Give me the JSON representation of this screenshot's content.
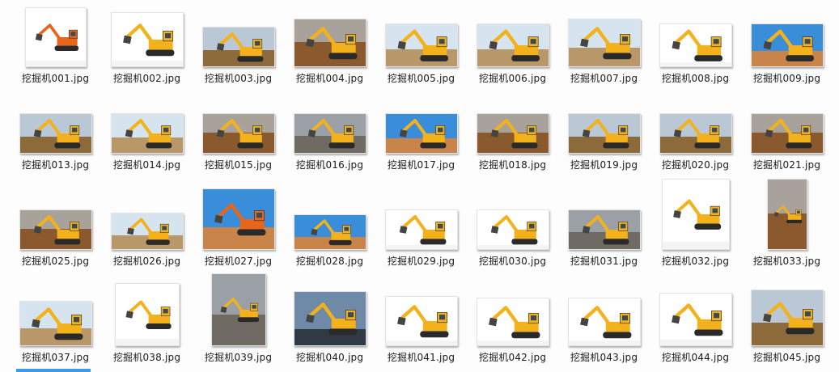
{
  "files": [
    {
      "name": "挖掘机001.jpg",
      "scene": "white"
    },
    {
      "name": "挖掘机002.jpg",
      "scene": "white"
    },
    {
      "name": "挖掘机003.jpg",
      "scene": "field"
    },
    {
      "name": "挖掘机004.jpg",
      "scene": "dirt"
    },
    {
      "name": "挖掘机005.jpg",
      "scene": "sky"
    },
    {
      "name": "挖掘机006.jpg",
      "scene": "sky"
    },
    {
      "name": "挖掘机007.jpg",
      "scene": "sky"
    },
    {
      "name": "挖掘机008.jpg",
      "scene": "white"
    },
    {
      "name": "挖掘机009.jpg",
      "scene": "bluesky"
    },
    {
      "name": "挖掘机013.jpg",
      "scene": "field"
    },
    {
      "name": "挖掘机014.jpg",
      "scene": "sky"
    },
    {
      "name": "挖掘机015.jpg",
      "scene": "dirt"
    },
    {
      "name": "挖掘机016.jpg",
      "scene": "building"
    },
    {
      "name": "挖掘机017.jpg",
      "scene": "bluesky"
    },
    {
      "name": "挖掘机018.jpg",
      "scene": "dirt"
    },
    {
      "name": "挖掘机019.jpg",
      "scene": "field"
    },
    {
      "name": "挖掘机020.jpg",
      "scene": "field"
    },
    {
      "name": "挖掘机021.jpg",
      "scene": "dirt"
    },
    {
      "name": "挖掘机025.jpg",
      "scene": "dirt"
    },
    {
      "name": "挖掘机026.jpg",
      "scene": "sky"
    },
    {
      "name": "挖掘机027.jpg",
      "scene": "bluesky"
    },
    {
      "name": "挖掘机028.jpg",
      "scene": "bluesky"
    },
    {
      "name": "挖掘机029.jpg",
      "scene": "white"
    },
    {
      "name": "挖掘机030.jpg",
      "scene": "white"
    },
    {
      "name": "挖掘机031.jpg",
      "scene": "building"
    },
    {
      "name": "挖掘机032.jpg",
      "scene": "white"
    },
    {
      "name": "挖掘机033.jpg",
      "scene": "dirt"
    },
    {
      "name": "挖掘机037.jpg",
      "scene": "sky"
    },
    {
      "name": "挖掘机038.jpg",
      "scene": "white"
    },
    {
      "name": "挖掘机039.jpg",
      "scene": "building"
    },
    {
      "name": "挖掘机040.jpg",
      "scene": "storm"
    },
    {
      "name": "挖掘机041.jpg",
      "scene": "white"
    },
    {
      "name": "挖掘机042.jpg",
      "scene": "white"
    },
    {
      "name": "挖掘机043.jpg",
      "scene": "white"
    },
    {
      "name": "挖掘机044.jpg",
      "scene": "white"
    },
    {
      "name": "挖掘机045.jpg",
      "scene": "field"
    }
  ],
  "colors": {
    "machine_yellow": "#f3b21b",
    "machine_orange": "#e8661c",
    "selection_blue": "#3c9ae6"
  }
}
